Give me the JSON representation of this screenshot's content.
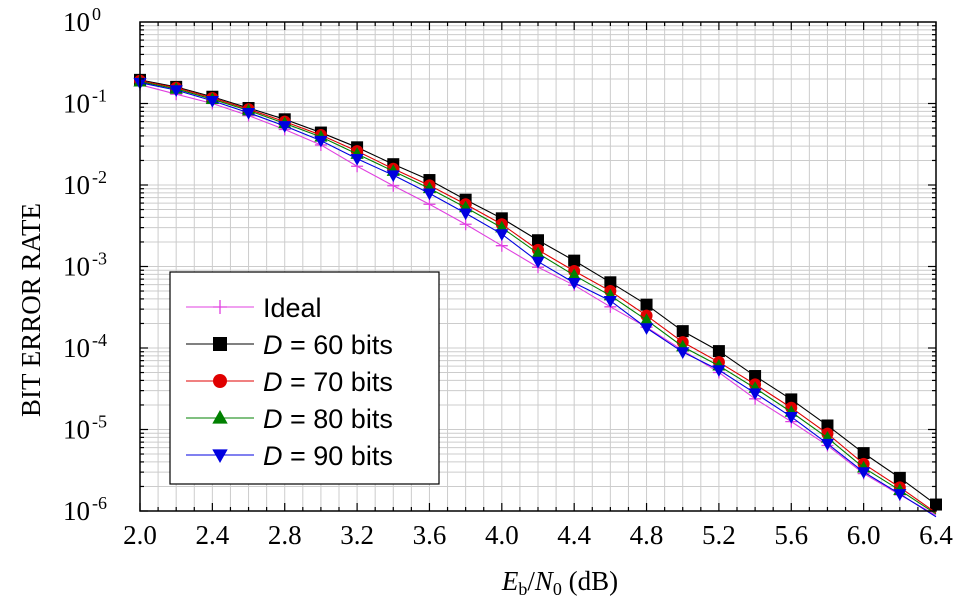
{
  "chart_data": {
    "type": "line",
    "xlabel": {
      "var1": "E",
      "sub1": "b",
      "slash": "/",
      "var2": "N",
      "sub2": "0",
      "unit": " (dB)"
    },
    "ylabel": "BIT ERROR RATE",
    "xlim": [
      2.0,
      6.4
    ],
    "ylim": [
      1e-06,
      1
    ],
    "yscale": "log",
    "grid": true,
    "legend_position": "bottom-left",
    "x_ticks": [
      "2.0",
      "2.4",
      "2.8",
      "3.2",
      "3.6",
      "4.0",
      "4.4",
      "4.8",
      "5.2",
      "5.6",
      "6.0",
      "6.4"
    ],
    "x_tick_values": [
      2.0,
      2.4,
      2.8,
      3.2,
      3.6,
      4.0,
      4.4,
      4.8,
      5.2,
      5.6,
      6.0,
      6.4
    ],
    "y_ticks": [
      {
        "base": "10",
        "exp": "0",
        "value": 1
      },
      {
        "base": "10",
        "exp": "-1",
        "value": 0.1
      },
      {
        "base": "10",
        "exp": "-2",
        "value": 0.01
      },
      {
        "base": "10",
        "exp": "-3",
        "value": 0.001
      },
      {
        "base": "10",
        "exp": "-4",
        "value": 0.0001
      },
      {
        "base": "10",
        "exp": "-5",
        "value": 1e-05
      },
      {
        "base": "10",
        "exp": "-6",
        "value": 1e-06
      }
    ],
    "x": [
      2.0,
      2.2,
      2.4,
      2.6,
      2.8,
      3.0,
      3.2,
      3.4,
      3.6,
      3.8,
      4.0,
      4.2,
      4.4,
      4.6,
      4.8,
      5.0,
      5.2,
      5.4,
      5.6,
      5.8,
      6.0,
      6.2,
      6.4
    ],
    "series": [
      {
        "name": "Ideal",
        "legend_prefix": "",
        "legend_suffix": "",
        "color": "#e040e0",
        "marker": "plus",
        "values": [
          0.17,
          0.13,
          0.1,
          0.071,
          0.048,
          0.031,
          0.017,
          0.0098,
          0.0058,
          0.0033,
          0.0018,
          0.00098,
          0.00059,
          0.00032,
          0.00018,
          9.37e-05,
          5.01e-05,
          2.38e-05,
          1.25e-05,
          6.37e-06,
          2.88e-06,
          1.58e-06,
          8.9e-07
        ]
      },
      {
        "name": "60 bits",
        "legend_prefix": "D",
        "legend_suffix": " = 60 bits",
        "color": "#000000",
        "marker": "square",
        "values": [
          0.195,
          0.16,
          0.121,
          0.088,
          0.064,
          0.044,
          0.029,
          0.018,
          0.0115,
          0.0066,
          0.0039,
          0.0021,
          0.00118,
          0.00064,
          0.00034,
          0.000161,
          9.16e-05,
          4.53e-05,
          2.34e-05,
          1.12e-05,
          5.13e-06,
          2.55e-06,
          1.2e-06
        ]
      },
      {
        "name": "70 bits",
        "legend_prefix": "D",
        "legend_suffix": " = 70 bits",
        "color": "#e00000",
        "marker": "circle",
        "values": [
          0.19,
          0.156,
          0.117,
          0.085,
          0.06,
          0.041,
          0.026,
          0.0158,
          0.0099,
          0.0058,
          0.0033,
          0.0016,
          0.00088,
          0.0005,
          0.00025,
          0.000118,
          6.7e-05,
          3.58e-05,
          1.85e-05,
          8.9e-06,
          3.79e-06,
          1.95e-06,
          9.5e-07
        ]
      },
      {
        "name": "80 bits",
        "legend_prefix": "D",
        "legend_suffix": " = 80 bits",
        "color": "#008000",
        "marker": "triangle-up",
        "values": [
          0.185,
          0.151,
          0.113,
          0.082,
          0.057,
          0.039,
          0.024,
          0.0148,
          0.0091,
          0.0053,
          0.003,
          0.00145,
          0.00078,
          0.00044,
          0.00022,
          0.000104,
          6.06e-05,
          3.22e-05,
          1.64e-05,
          7.9e-06,
          3.4e-06,
          1.8e-06,
          9.2e-07
        ]
      },
      {
        "name": "90 bits",
        "legend_prefix": "D",
        "legend_suffix": " = 90 bits",
        "color": "#0000e0",
        "marker": "triangle-down",
        "values": [
          0.18,
          0.146,
          0.108,
          0.077,
          0.053,
          0.035,
          0.021,
          0.0132,
          0.0079,
          0.0045,
          0.0025,
          0.00115,
          0.00063,
          0.00038,
          0.000176,
          8.92e-05,
          5.37e-05,
          2.79e-05,
          1.43e-05,
          6.7e-06,
          3.01e-06,
          1.62e-06,
          8.5e-07
        ]
      }
    ]
  }
}
